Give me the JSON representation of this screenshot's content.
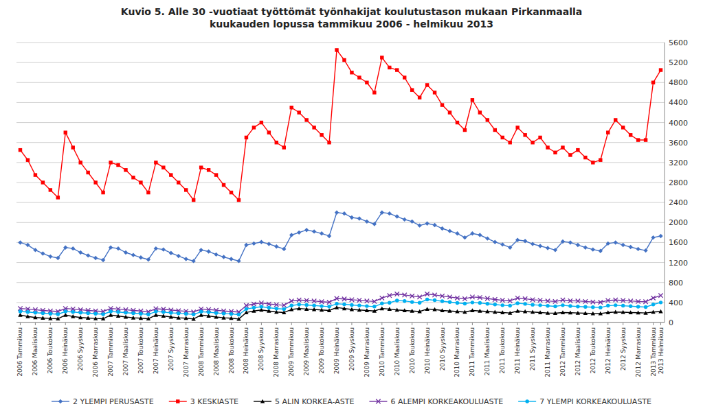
{
  "chart_data": {
    "type": "line",
    "title": "Kuvio 5. Alle 30 -vuotiaat työttömät työnhakijat koulutustason mukaan Pirkanmaalla\nkuukauden lopussa tammikuu 2006 - helmikuu 2013",
    "categories": [
      "2006 Tammikuu",
      null,
      "2006 Maaliskuu",
      null,
      "2006 Toukokuu",
      null,
      "2006 Heinäkuu",
      null,
      "2006 Syyskuu",
      null,
      "2006 Marraskuu",
      null,
      "2007 Tammikuu",
      null,
      "2007 Maaliskuu",
      null,
      "2007 Toukokuu",
      null,
      "2007 Heinäkuu",
      null,
      "2007 Syyskuu",
      null,
      "2007 Marraskuu",
      null,
      "2008 Tammikuu",
      null,
      "2008 Maaliskuu",
      null,
      "2008 Toukokuu",
      null,
      "2008 Heinäkuu",
      null,
      "2008 Syyskuu",
      null,
      "2008 Marraskuu",
      null,
      "2009 Tammikuu",
      null,
      "2009 Maaliskuu",
      null,
      "2009 Toukokuu",
      null,
      "2009 Heinäkuu",
      null,
      "2009 Syyskuu",
      null,
      "2009 Marraskuu",
      null,
      "2010 Tammikuu",
      null,
      "2010 Maaliskuu",
      null,
      "2010 Toukokuu",
      null,
      "2010 Heinäkuu",
      null,
      "2010 Syyskuu",
      null,
      "2010 Marraskuu",
      null,
      "2011 Tammikuu",
      null,
      "2011 Maaliskuu",
      null,
      "2011 Toukokuu",
      null,
      "2011 Heinäkuu",
      null,
      "2011 Syyskuu",
      null,
      "2011 Marraskuu",
      null,
      "2012 Tammikuu",
      null,
      "2012 Maaliskuu",
      null,
      "2012 Toukokuu",
      null,
      "2012 Heinäkuu",
      null,
      "2012 Syyskuu",
      null,
      "2012 Marraskuu",
      null,
      "2013 Tammikuu",
      "2013 Helmikuu"
    ],
    "series": [
      {
        "name": "2 YLEMPI PERUSASTE",
        "color": "#4472C4",
        "marker": "diamond",
        "values": [
          1600,
          1550,
          1450,
          1380,
          1320,
          1290,
          1500,
          1480,
          1400,
          1340,
          1290,
          1250,
          1500,
          1480,
          1400,
          1350,
          1300,
          1260,
          1480,
          1460,
          1390,
          1330,
          1270,
          1230,
          1450,
          1420,
          1360,
          1310,
          1270,
          1230,
          1550,
          1580,
          1610,
          1570,
          1520,
          1470,
          1750,
          1800,
          1850,
          1820,
          1780,
          1730,
          2200,
          2180,
          2100,
          2080,
          2020,
          1970,
          2200,
          2180,
          2120,
          2060,
          2020,
          1940,
          1980,
          1950,
          1880,
          1830,
          1780,
          1700,
          1780,
          1750,
          1680,
          1610,
          1560,
          1500,
          1650,
          1630,
          1570,
          1530,
          1490,
          1450,
          1620,
          1600,
          1550,
          1500,
          1460,
          1430,
          1580,
          1600,
          1550,
          1510,
          1470,
          1440,
          1700,
          1730
        ]
      },
      {
        "name": "3 KESKIASTE",
        "color": "#FF0000",
        "marker": "square",
        "values": [
          3450,
          3250,
          2950,
          2800,
          2650,
          2500,
          3800,
          3500,
          3200,
          3000,
          2800,
          2600,
          3200,
          3150,
          3050,
          2900,
          2800,
          2600,
          3200,
          3100,
          2950,
          2800,
          2650,
          2450,
          3100,
          3050,
          2950,
          2750,
          2600,
          2450,
          3700,
          3900,
          4000,
          3800,
          3600,
          3500,
          4300,
          4200,
          4050,
          3900,
          3750,
          3600,
          5450,
          5250,
          5000,
          4900,
          4800,
          4600,
          5300,
          5100,
          5050,
          4900,
          4650,
          4500,
          4750,
          4600,
          4350,
          4200,
          4000,
          3850,
          4450,
          4200,
          4050,
          3850,
          3700,
          3600,
          3900,
          3750,
          3600,
          3700,
          3500,
          3400,
          3500,
          3350,
          3450,
          3300,
          3200,
          3250,
          3800,
          4050,
          3900,
          3750,
          3650,
          3650,
          4800,
          5050
        ]
      },
      {
        "name": "5 ALIN KORKEA-ASTE",
        "color": "#000000",
        "marker": "triangle",
        "values": [
          150,
          120,
          100,
          90,
          80,
          75,
          150,
          120,
          100,
          90,
          80,
          75,
          150,
          130,
          110,
          95,
          85,
          75,
          150,
          130,
          110,
          95,
          85,
          70,
          150,
          130,
          110,
          95,
          85,
          70,
          200,
          230,
          250,
          230,
          210,
          200,
          260,
          280,
          270,
          260,
          250,
          240,
          300,
          280,
          260,
          250,
          240,
          230,
          280,
          270,
          250,
          240,
          230,
          220,
          270,
          260,
          240,
          230,
          220,
          210,
          240,
          230,
          220,
          210,
          200,
          190,
          230,
          220,
          210,
          200,
          190,
          185,
          200,
          195,
          190,
          185,
          180,
          178,
          200,
          210,
          205,
          200,
          195,
          190,
          210,
          220
        ]
      },
      {
        "name": "6 ALEMPI KORKEAKOULUASTE",
        "color": "#7030A0",
        "marker": "x",
        "values": [
          280,
          270,
          255,
          240,
          230,
          220,
          280,
          270,
          255,
          240,
          230,
          220,
          280,
          270,
          255,
          240,
          230,
          215,
          275,
          265,
          250,
          235,
          225,
          210,
          270,
          260,
          245,
          230,
          220,
          210,
          340,
          370,
          390,
          370,
          355,
          345,
          430,
          450,
          440,
          430,
          415,
          405,
          480,
          470,
          455,
          445,
          430,
          420,
          490,
          540,
          570,
          550,
          530,
          510,
          570,
          550,
          530,
          510,
          490,
          475,
          510,
          500,
          480,
          460,
          445,
          435,
          490,
          475,
          455,
          445,
          430,
          420,
          450,
          435,
          430,
          420,
          410,
          405,
          440,
          450,
          440,
          430,
          420,
          415,
          490,
          540
        ]
      },
      {
        "name": "7 YLEMPI KORKEAKOULUASTE",
        "color": "#00B0F0",
        "marker": "circle",
        "values": [
          220,
          210,
          195,
          185,
          175,
          165,
          220,
          210,
          195,
          185,
          175,
          165,
          220,
          210,
          195,
          185,
          175,
          162,
          218,
          208,
          193,
          183,
          173,
          160,
          215,
          205,
          190,
          180,
          170,
          158,
          270,
          295,
          315,
          295,
          278,
          268,
          340,
          360,
          350,
          340,
          328,
          318,
          375,
          365,
          350,
          340,
          328,
          318,
          380,
          395,
          440,
          430,
          410,
          395,
          460,
          445,
          425,
          408,
          392,
          378,
          400,
          390,
          375,
          360,
          345,
          335,
          385,
          372,
          355,
          345,
          332,
          322,
          345,
          330,
          320,
          312,
          305,
          300,
          335,
          345,
          335,
          325,
          315,
          308,
          360,
          400
        ]
      }
    ],
    "ylim": [
      0,
      5600
    ],
    "yticks": [
      0,
      400,
      800,
      1200,
      1600,
      2000,
      2400,
      2800,
      3200,
      3600,
      4000,
      4400,
      4800,
      5200,
      5600
    ],
    "grid": true,
    "legend": "bottom"
  }
}
